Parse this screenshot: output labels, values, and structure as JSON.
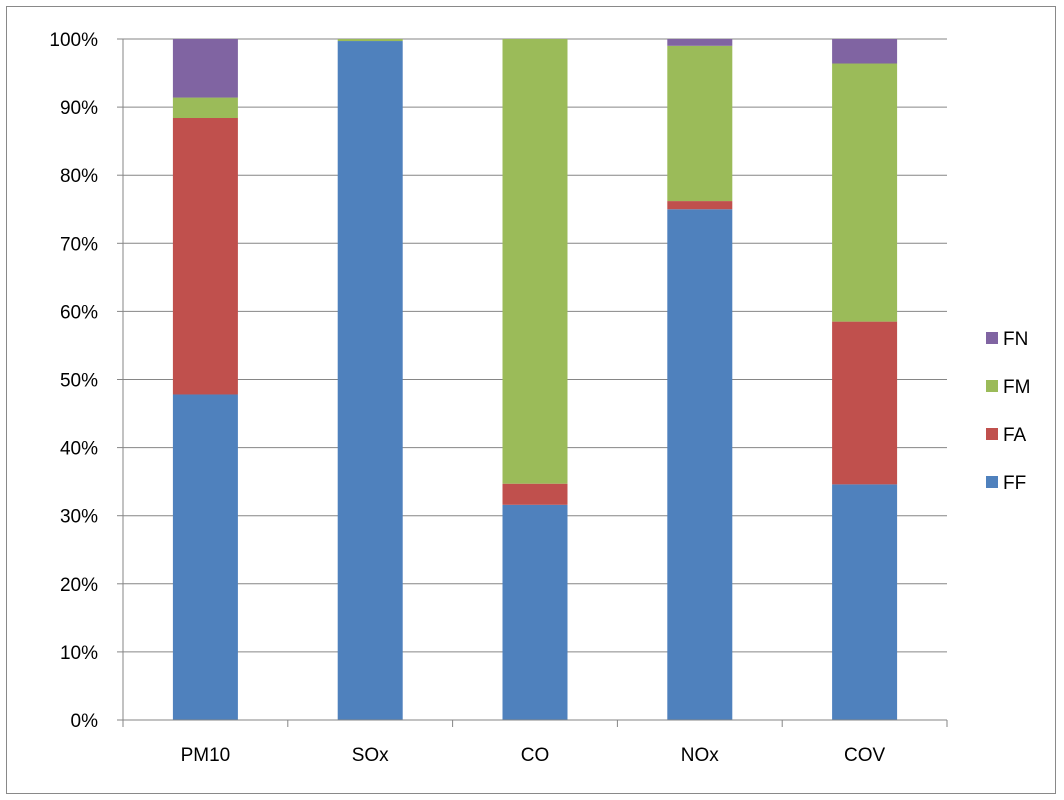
{
  "chart_data": {
    "type": "bar",
    "stacked": "percent",
    "categories": [
      "PM10",
      "SOx",
      "CO",
      "NOx",
      "COV"
    ],
    "series": [
      {
        "name": "FF",
        "color": "#4F81BD",
        "values": [
          47.8,
          99.7,
          31.6,
          75.0,
          34.6
        ]
      },
      {
        "name": "FA",
        "color": "#C0504D",
        "values": [
          40.6,
          0.0,
          3.1,
          1.2,
          23.9
        ]
      },
      {
        "name": "FM",
        "color": "#9BBB59",
        "values": [
          3.0,
          0.3,
          65.3,
          22.8,
          37.9
        ]
      },
      {
        "name": "FN",
        "color": "#8064A2",
        "values": [
          8.6,
          0.0,
          0.0,
          1.0,
          3.6
        ]
      }
    ],
    "yticks": [
      "0%",
      "10%",
      "20%",
      "30%",
      "40%",
      "50%",
      "60%",
      "70%",
      "80%",
      "90%",
      "100%"
    ],
    "ylim": [
      0,
      100
    ],
    "grid": true,
    "legend_position": "right",
    "legend_order": [
      "FN",
      "FM",
      "FA",
      "FF"
    ],
    "title": "",
    "xlabel": "",
    "ylabel": ""
  }
}
